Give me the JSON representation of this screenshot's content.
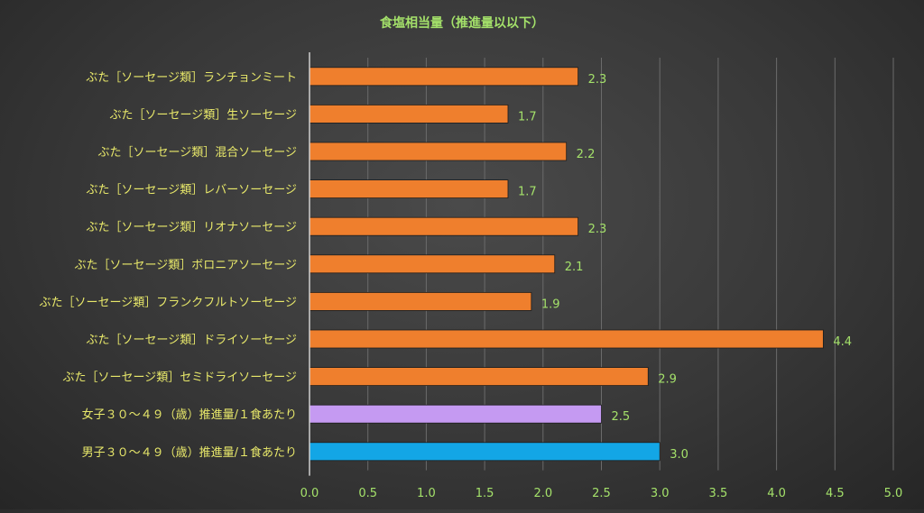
{
  "colors": {
    "title": "#a4e16a",
    "category_label": "#e8e86a",
    "tick_label": "#a4e16a",
    "data_label": "#a4e16a",
    "grid": "#6b6b6b",
    "axis": "#cfcfcf",
    "bar_default": "#ef7f2d",
    "bar_female": "#c59af2",
    "bar_male": "#13a6e6"
  },
  "chart_data": {
    "type": "bar",
    "orientation": "horizontal",
    "title": "食塩相当量（推進量以以下）",
    "xlabel": "",
    "ylabel": "",
    "xlim": [
      0,
      5
    ],
    "xticks": [
      "0.0",
      "0.5",
      "1.0",
      "1.5",
      "2.0",
      "2.5",
      "3.0",
      "3.5",
      "4.0",
      "4.5",
      "5.0"
    ],
    "grid": true,
    "legend": "none",
    "categories": [
      "ぶた［ソーセージ類］ランチョンミート",
      "ぶた［ソーセージ類］生ソーセージ",
      "ぶた［ソーセージ類］混合ソーセージ",
      "ぶた［ソーセージ類］レバーソーセージ",
      "ぶた［ソーセージ類］リオナソーセージ",
      "ぶた［ソーセージ類］ボロニアソーセージ",
      "ぶた［ソーセージ類］フランクフルトソーセージ",
      "ぶた［ソーセージ類］ドライソーセージ",
      "ぶた［ソーセージ類］セミドライソーセージ",
      "女子３０～４９（歳）推進量/１食あたり",
      "男子３０～４９（歳）推進量/１食あたり"
    ],
    "values": [
      2.3,
      1.7,
      2.2,
      1.7,
      2.3,
      2.1,
      1.9,
      4.4,
      2.9,
      2.5,
      3.0
    ],
    "value_labels": [
      "2.3",
      "1.7",
      "2.2",
      "1.7",
      "2.3",
      "2.1",
      "1.9",
      "4.4",
      "2.9",
      "2.5",
      "3.0"
    ],
    "bar_colors": [
      "#ef7f2d",
      "#ef7f2d",
      "#ef7f2d",
      "#ef7f2d",
      "#ef7f2d",
      "#ef7f2d",
      "#ef7f2d",
      "#ef7f2d",
      "#ef7f2d",
      "#c59af2",
      "#13a6e6"
    ]
  }
}
